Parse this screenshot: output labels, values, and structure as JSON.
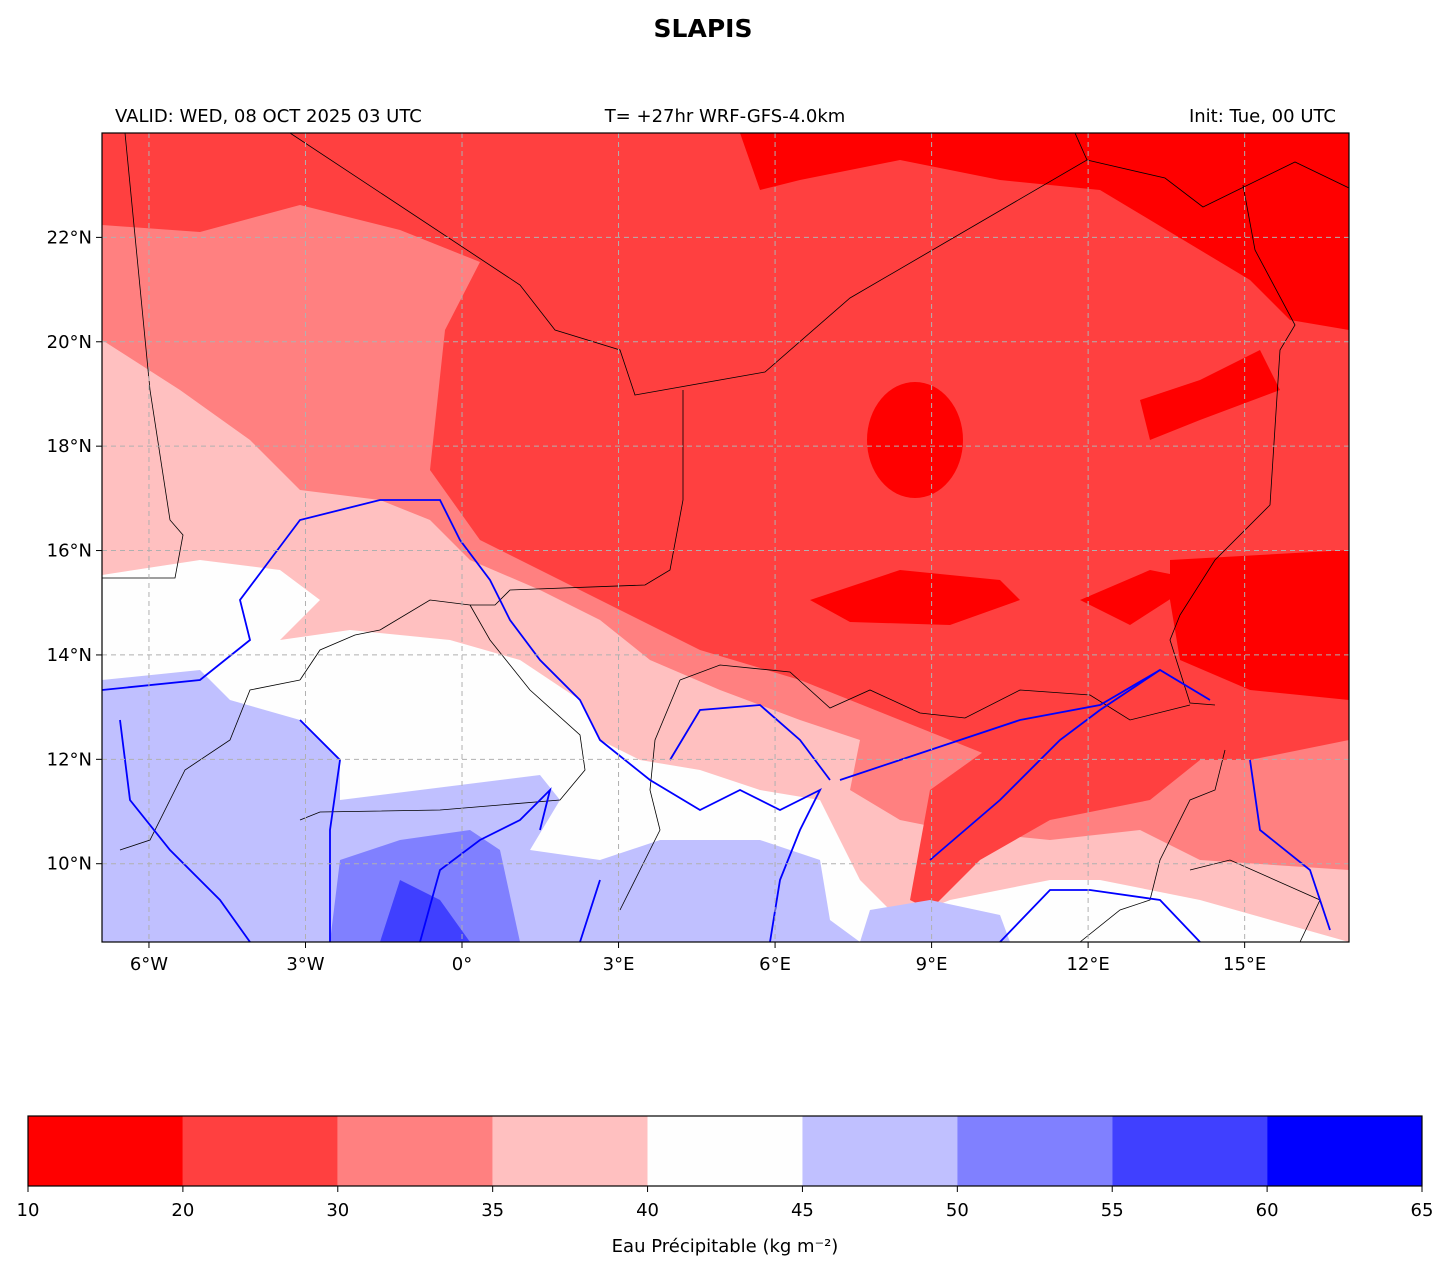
{
  "title": "SLAPIS",
  "header": {
    "valid": "VALID: WED, 08 OCT 2025 03 UTC",
    "run": "T= +27hr WRF-GFS-4.0km",
    "init": "Init: Tue, 00 UTC"
  },
  "map": {
    "xlim": [
      -6.9,
      17
    ],
    "ylim": [
      8.5,
      24
    ],
    "grid": true,
    "xticks": [
      {
        "value": -6,
        "label": "6°W"
      },
      {
        "value": -3,
        "label": "3°W"
      },
      {
        "value": 0,
        "label": "0°"
      },
      {
        "value": 3,
        "label": "3°E"
      },
      {
        "value": 6,
        "label": "6°E"
      },
      {
        "value": 9,
        "label": "9°E"
      },
      {
        "value": 12,
        "label": "12°E"
      },
      {
        "value": 15,
        "label": "15°E"
      }
    ],
    "yticks": [
      {
        "value": 10,
        "label": "10°N"
      },
      {
        "value": 12,
        "label": "12°N"
      },
      {
        "value": 14,
        "label": "14°N"
      },
      {
        "value": 16,
        "label": "16°N"
      },
      {
        "value": 18,
        "label": "18°N"
      },
      {
        "value": 20,
        "label": "20°N"
      },
      {
        "value": 22,
        "label": "22°N"
      }
    ]
  },
  "colorbar": {
    "label": "Eau Précipitable (kg m⁻²)",
    "bounds": [
      10,
      20,
      30,
      35,
      40,
      45,
      50,
      55,
      60,
      65
    ],
    "colors": [
      "#ff0000",
      "#ff4040",
      "#ff8080",
      "#ffc0c0",
      "#fefefe",
      "#c0c0ff",
      "#8080ff",
      "#4040ff",
      "#0000ff"
    ]
  }
}
